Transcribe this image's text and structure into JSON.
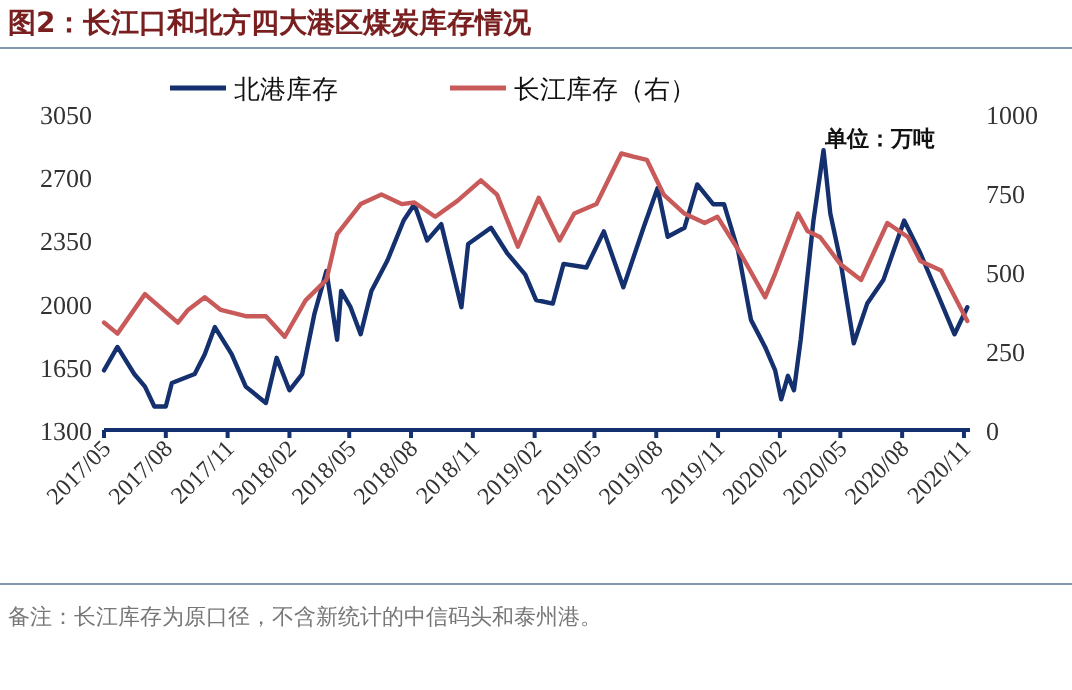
{
  "chart_data": {
    "type": "line",
    "title": "图2：长江口和北方四大港区煤炭库存情况",
    "annotations": [
      "单位：万吨",
      "备注：长江库存为原口径，不含新统计的中信码头和泰州港。"
    ],
    "legend": "top",
    "grid": false,
    "line_style": "solid",
    "marker": "none",
    "xlim": [
      "2017-05-01",
      "2020-11-10"
    ],
    "xticks": [
      {
        "value": "2017-05-01",
        "label": "2017/05"
      },
      {
        "value": "2017-08-01",
        "label": "2017/08"
      },
      {
        "value": "2017-11-01",
        "label": "2017/11"
      },
      {
        "value": "2018-02-01",
        "label": "2018/02"
      },
      {
        "value": "2018-05-01",
        "label": "2018/05"
      },
      {
        "value": "2018-08-01",
        "label": "2018/08"
      },
      {
        "value": "2018-11-01",
        "label": "2018/11"
      },
      {
        "value": "2019-02-01",
        "label": "2019/02"
      },
      {
        "value": "2019-05-01",
        "label": "2019/05"
      },
      {
        "value": "2019-08-01",
        "label": "2019/08"
      },
      {
        "value": "2019-11-01",
        "label": "2019/11"
      },
      {
        "value": "2020-02-01",
        "label": "2020/02"
      },
      {
        "value": "2020-05-01",
        "label": "2020/05"
      },
      {
        "value": "2020-08-01",
        "label": "2020/08"
      },
      {
        "value": "2020-11-01",
        "label": "2020/11"
      }
    ],
    "ylim": [
      1300,
      3050
    ],
    "yticks": [
      1300,
      1650,
      2000,
      2350,
      2700,
      3050
    ],
    "y2lim": [
      0,
      1000
    ],
    "y2ticks": [
      0,
      250,
      500,
      750,
      1000
    ],
    "series": [
      {
        "name": "北港库存",
        "color": "#14306e",
        "x": [
          "2017-05-01",
          "2017-05-21",
          "2017-06-15",
          "2017-07-01",
          "2017-07-15",
          "2017-08-01",
          "2017-08-10",
          "2017-09-13",
          "2017-09-28",
          "2017-10-13",
          "2017-11-07",
          "2017-11-28",
          "2017-12-28",
          "2018-01-13",
          "2018-02-01",
          "2018-02-20",
          "2018-03-10",
          "2018-03-28",
          "2018-04-13",
          "2018-04-19",
          "2018-05-03",
          "2018-05-18",
          "2018-06-03",
          "2018-06-27",
          "2018-07-21",
          "2018-08-06",
          "2018-08-25",
          "2018-09-15",
          "2018-10-15",
          "2018-10-25",
          "2018-11-28",
          "2018-12-22",
          "2019-01-18",
          "2019-02-03",
          "2019-02-28",
          "2019-03-16",
          "2019-04-19",
          "2019-05-15",
          "2019-06-13",
          "2019-07-13",
          "2019-08-03",
          "2019-08-18",
          "2019-09-12",
          "2019-10-01",
          "2019-10-25",
          "2019-11-10",
          "2019-12-01",
          "2019-12-20",
          "2020-01-10",
          "2020-01-25",
          "2020-02-03",
          "2020-02-13",
          "2020-02-22",
          "2020-03-03",
          "2020-03-22",
          "2020-04-06",
          "2020-04-16",
          "2020-05-01",
          "2020-05-21",
          "2020-06-10",
          "2020-07-04",
          "2020-08-04",
          "2020-08-28",
          "2020-09-22",
          "2020-10-18",
          "2020-11-06"
        ],
        "values": [
          1630,
          1760,
          1610,
          1540,
          1430,
          1430,
          1560,
          1610,
          1720,
          1870,
          1720,
          1540,
          1450,
          1700,
          1520,
          1610,
          1940,
          2180,
          1800,
          2070,
          1980,
          1830,
          2070,
          2240,
          2460,
          2550,
          2350,
          2440,
          1980,
          2330,
          2420,
          2280,
          2160,
          2020,
          2000,
          2220,
          2200,
          2400,
          2090,
          2420,
          2640,
          2370,
          2420,
          2660,
          2550,
          2550,
          2290,
          1910,
          1760,
          1630,
          1470,
          1600,
          1520,
          1800,
          2460,
          2850,
          2500,
          2240,
          1780,
          2000,
          2130,
          2460,
          2280,
          2060,
          1830,
          1980
        ]
      },
      {
        "name": "长江库存（右）",
        "color": "#c85a5a",
        "axis": "y2",
        "x": [
          "2017-05-01",
          "2017-05-21",
          "2017-07-01",
          "2017-08-19",
          "2017-09-03",
          "2017-09-28",
          "2017-10-22",
          "2017-11-28",
          "2017-12-28",
          "2018-01-25",
          "2018-02-25",
          "2018-03-28",
          "2018-04-13",
          "2018-05-18",
          "2018-06-18",
          "2018-07-18",
          "2018-08-06",
          "2018-09-06",
          "2018-10-09",
          "2018-11-13",
          "2018-12-07",
          "2019-01-07",
          "2019-02-07",
          "2019-03-10",
          "2019-04-01",
          "2019-05-04",
          "2019-06-10",
          "2019-06-28",
          "2019-07-18",
          "2019-08-12",
          "2019-09-12",
          "2019-10-12",
          "2019-10-31",
          "2019-12-04",
          "2020-01-10",
          "2020-01-25",
          "2020-02-28",
          "2020-03-13",
          "2020-04-01",
          "2020-05-01",
          "2020-06-01",
          "2020-07-10",
          "2020-08-10",
          "2020-08-28",
          "2020-09-28",
          "2020-11-06"
        ],
        "values": [
          340,
          305,
          430,
          340,
          380,
          420,
          380,
          360,
          360,
          295,
          410,
          475,
          620,
          715,
          745,
          715,
          720,
          675,
          725,
          790,
          745,
          580,
          735,
          600,
          685,
          715,
          875,
          865,
          855,
          745,
          685,
          655,
          675,
          560,
          420,
          495,
          685,
          630,
          610,
          525,
          475,
          655,
          610,
          535,
          505,
          345
        ]
      }
    ]
  }
}
